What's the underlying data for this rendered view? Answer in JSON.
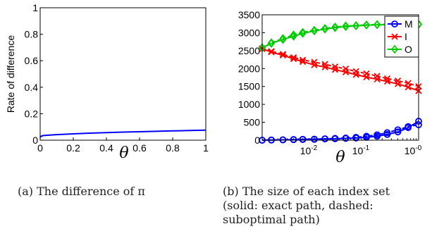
{
  "chart_data": [
    {
      "type": "line",
      "ylabel": "Rate of difference",
      "xlabel": "θ",
      "xlim": [
        0,
        1
      ],
      "ylim": [
        0,
        1
      ],
      "x_ticks": [
        "0",
        "0.2",
        "0.4",
        "0.6",
        "0.8",
        "1"
      ],
      "y_ticks": [
        "0",
        "0.2",
        "0.4",
        "0.6",
        "0.8",
        "1"
      ],
      "grid": false,
      "series": [
        {
          "color": "#0000ff",
          "x": [
            0,
            0.005,
            0.02,
            0.05,
            0.1,
            0.2,
            0.3,
            0.4,
            0.5,
            0.6,
            0.7,
            0.8,
            0.9,
            1.0
          ],
          "y": [
            0.02,
            0.03,
            0.035,
            0.038,
            0.042,
            0.048,
            0.053,
            0.057,
            0.061,
            0.064,
            0.067,
            0.07,
            0.073,
            0.076
          ]
        }
      ],
      "caption": "(a) The difference of π"
    },
    {
      "type": "line",
      "xlabel": "θ",
      "xscale": "log",
      "ylim": [
        0,
        3500
      ],
      "x_ticks": [
        "10-2",
        "10-1",
        "10-0"
      ],
      "y_ticks": [
        "0",
        "500",
        "1000",
        "1500",
        "2000",
        "2500",
        "3000",
        "3500"
      ],
      "grid": false,
      "legend_position": "top-right",
      "legend": [
        {
          "name": "M",
          "color": "#0000ff",
          "marker": "o"
        },
        {
          "name": "I",
          "color": "#ff0000",
          "marker": "x"
        },
        {
          "name": "O",
          "color": "#00cc00",
          "marker": "d"
        }
      ],
      "series": [
        {
          "name": "M",
          "style": "solid",
          "color": "#0000ff",
          "marker": "o",
          "x": [
            0.001,
            0.0015,
            0.0025,
            0.004,
            0.006,
            0.01,
            0.016,
            0.025,
            0.04,
            0.063,
            0.1,
            0.16,
            0.25,
            0.4,
            0.63,
            1.0
          ],
          "y": [
            0,
            5,
            10,
            15,
            20,
            25,
            35,
            40,
            50,
            60,
            80,
            110,
            160,
            230,
            350,
            530
          ]
        },
        {
          "name": "M",
          "style": "dashed",
          "color": "#0000ff",
          "marker": "o",
          "x": [
            0.001,
            0.0015,
            0.0025,
            0.004,
            0.006,
            0.01,
            0.016,
            0.025,
            0.04,
            0.063,
            0.1,
            0.16,
            0.25,
            0.4,
            0.63,
            1.0
          ],
          "y": [
            0,
            5,
            10,
            18,
            25,
            30,
            40,
            50,
            60,
            80,
            110,
            150,
            210,
            290,
            380,
            430
          ]
        },
        {
          "name": "I",
          "style": "solid",
          "color": "#ff0000",
          "marker": "x",
          "x": [
            0.001,
            0.0015,
            0.0025,
            0.004,
            0.006,
            0.01,
            0.016,
            0.025,
            0.04,
            0.063,
            0.1,
            0.16,
            0.25,
            0.4,
            0.63,
            1.0
          ],
          "y": [
            2550,
            2460,
            2370,
            2270,
            2190,
            2100,
            2040,
            1970,
            1900,
            1830,
            1760,
            1700,
            1640,
            1570,
            1480,
            1380
          ]
        },
        {
          "name": "I",
          "style": "dashed",
          "color": "#ff0000",
          "marker": "x",
          "x": [
            0.001,
            0.0015,
            0.0025,
            0.004,
            0.006,
            0.01,
            0.016,
            0.025,
            0.04,
            0.063,
            0.1,
            0.16,
            0.25,
            0.4,
            0.63,
            1.0
          ],
          "y": [
            2560,
            2480,
            2400,
            2310,
            2240,
            2180,
            2120,
            2050,
            1990,
            1920,
            1860,
            1790,
            1720,
            1660,
            1590,
            1500
          ]
        },
        {
          "name": "O",
          "style": "solid",
          "color": "#00cc00",
          "marker": "d",
          "x": [
            0.001,
            0.0015,
            0.0025,
            0.004,
            0.006,
            0.01,
            0.016,
            0.025,
            0.04,
            0.063,
            0.1,
            0.16,
            0.25,
            0.4,
            0.63,
            1.0
          ],
          "y": [
            2580,
            2700,
            2810,
            2900,
            2980,
            3050,
            3100,
            3140,
            3170,
            3190,
            3210,
            3220,
            3225,
            3230,
            3230,
            3230
          ]
        },
        {
          "name": "O",
          "style": "dashed",
          "color": "#00cc00",
          "marker": "d",
          "x": [
            0.001,
            0.0015,
            0.0025,
            0.004,
            0.006,
            0.01,
            0.016,
            0.025,
            0.04,
            0.063,
            0.1,
            0.16,
            0.25,
            0.4,
            0.63,
            1.0
          ],
          "y": [
            2580,
            2720,
            2840,
            2940,
            3010,
            3070,
            3120,
            3160,
            3190,
            3200,
            3220,
            3230,
            3230,
            3240,
            3240,
            3240
          ]
        }
      ],
      "caption": {
        "line1": "(b) The size of each index set",
        "line2": "(solid: exact path, dashed:",
        "line3": "suboptimal path)"
      }
    }
  ]
}
